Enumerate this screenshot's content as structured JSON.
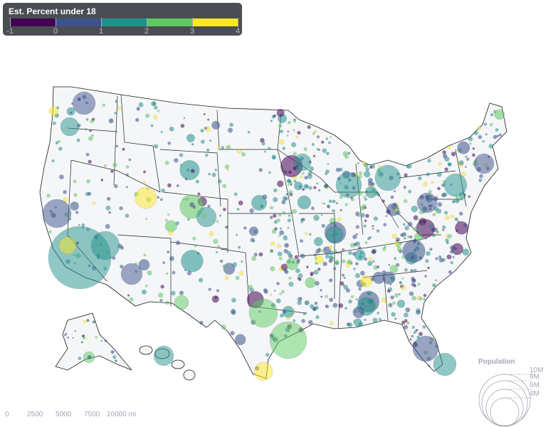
{
  "color_legend": {
    "title": "Est. Percent under 18",
    "ticks": [
      "-1",
      "0",
      "1",
      "2",
      "3",
      "4"
    ],
    "colors": [
      "#440154",
      "#3b528b",
      "#21918c",
      "#5ec962",
      "#fde725"
    ]
  },
  "population_legend": {
    "title": "Population",
    "labels": [
      "10M",
      "8M",
      "6M",
      "4M"
    ]
  },
  "scale_bar": {
    "labels": [
      "0",
      "2500",
      "5000",
      "7500",
      "10000 mi"
    ]
  },
  "colors": {
    "land": "#f4f6f8",
    "border": "#1a1a1a"
  }
}
